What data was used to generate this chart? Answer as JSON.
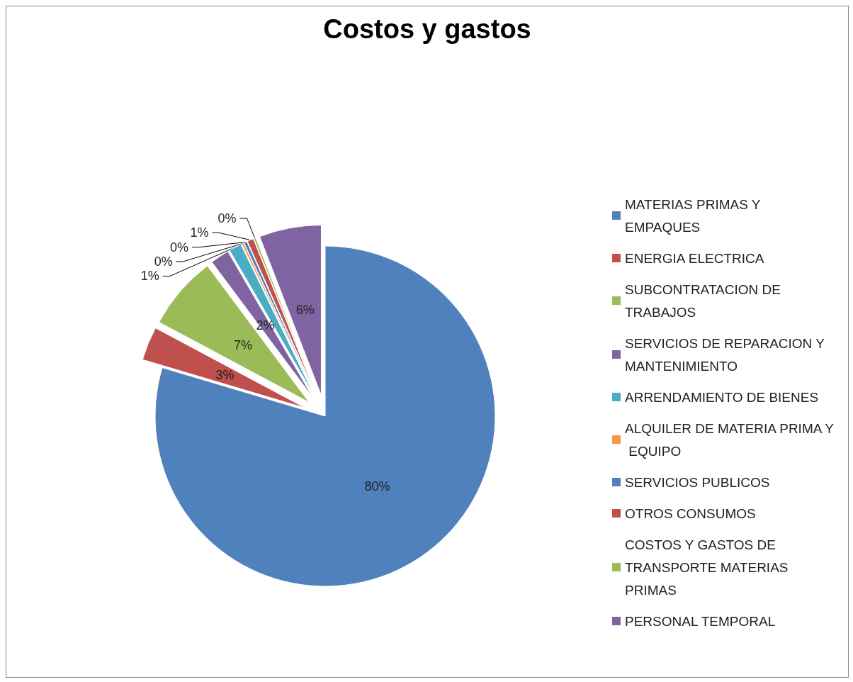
{
  "chart_data": {
    "type": "pie",
    "title": "Costos y gastos",
    "categories": [
      "MATERIAS PRIMAS Y EMPAQUES",
      "ENERGIA ELECTRICA",
      "SUBCONTRATACION DE TRABAJOS",
      "SERVICIOS DE REPARACION Y MANTENIMIENTO",
      "ARRENDAMIENTO DE BIENES",
      "ALQUILER DE MATERIA PRIMA Y EQUIPO",
      "SERVICIOS PUBLICOS",
      "OTROS CONSUMOS",
      "COSTOS Y GASTOS DE TRANSPORTE MATERIAS PRIMAS",
      "PERSONAL TEMPORAL"
    ],
    "values": [
      79.6,
      3.2,
      7.0,
      1.8,
      1.2,
      0.2,
      0.3,
      0.6,
      0.2,
      5.9
    ],
    "value_labels": [
      "80%",
      "3%",
      "7%",
      "2%",
      "1%",
      "0%",
      "0%",
      "1%",
      "0%",
      "6%"
    ],
    "colors": [
      "#4f81bd",
      "#c0504d",
      "#9bbb59",
      "#8064a2",
      "#4bacc6",
      "#f79646",
      "#4f81bd",
      "#c0504d",
      "#9bbb59",
      "#8064a2"
    ],
    "legend": "right"
  }
}
